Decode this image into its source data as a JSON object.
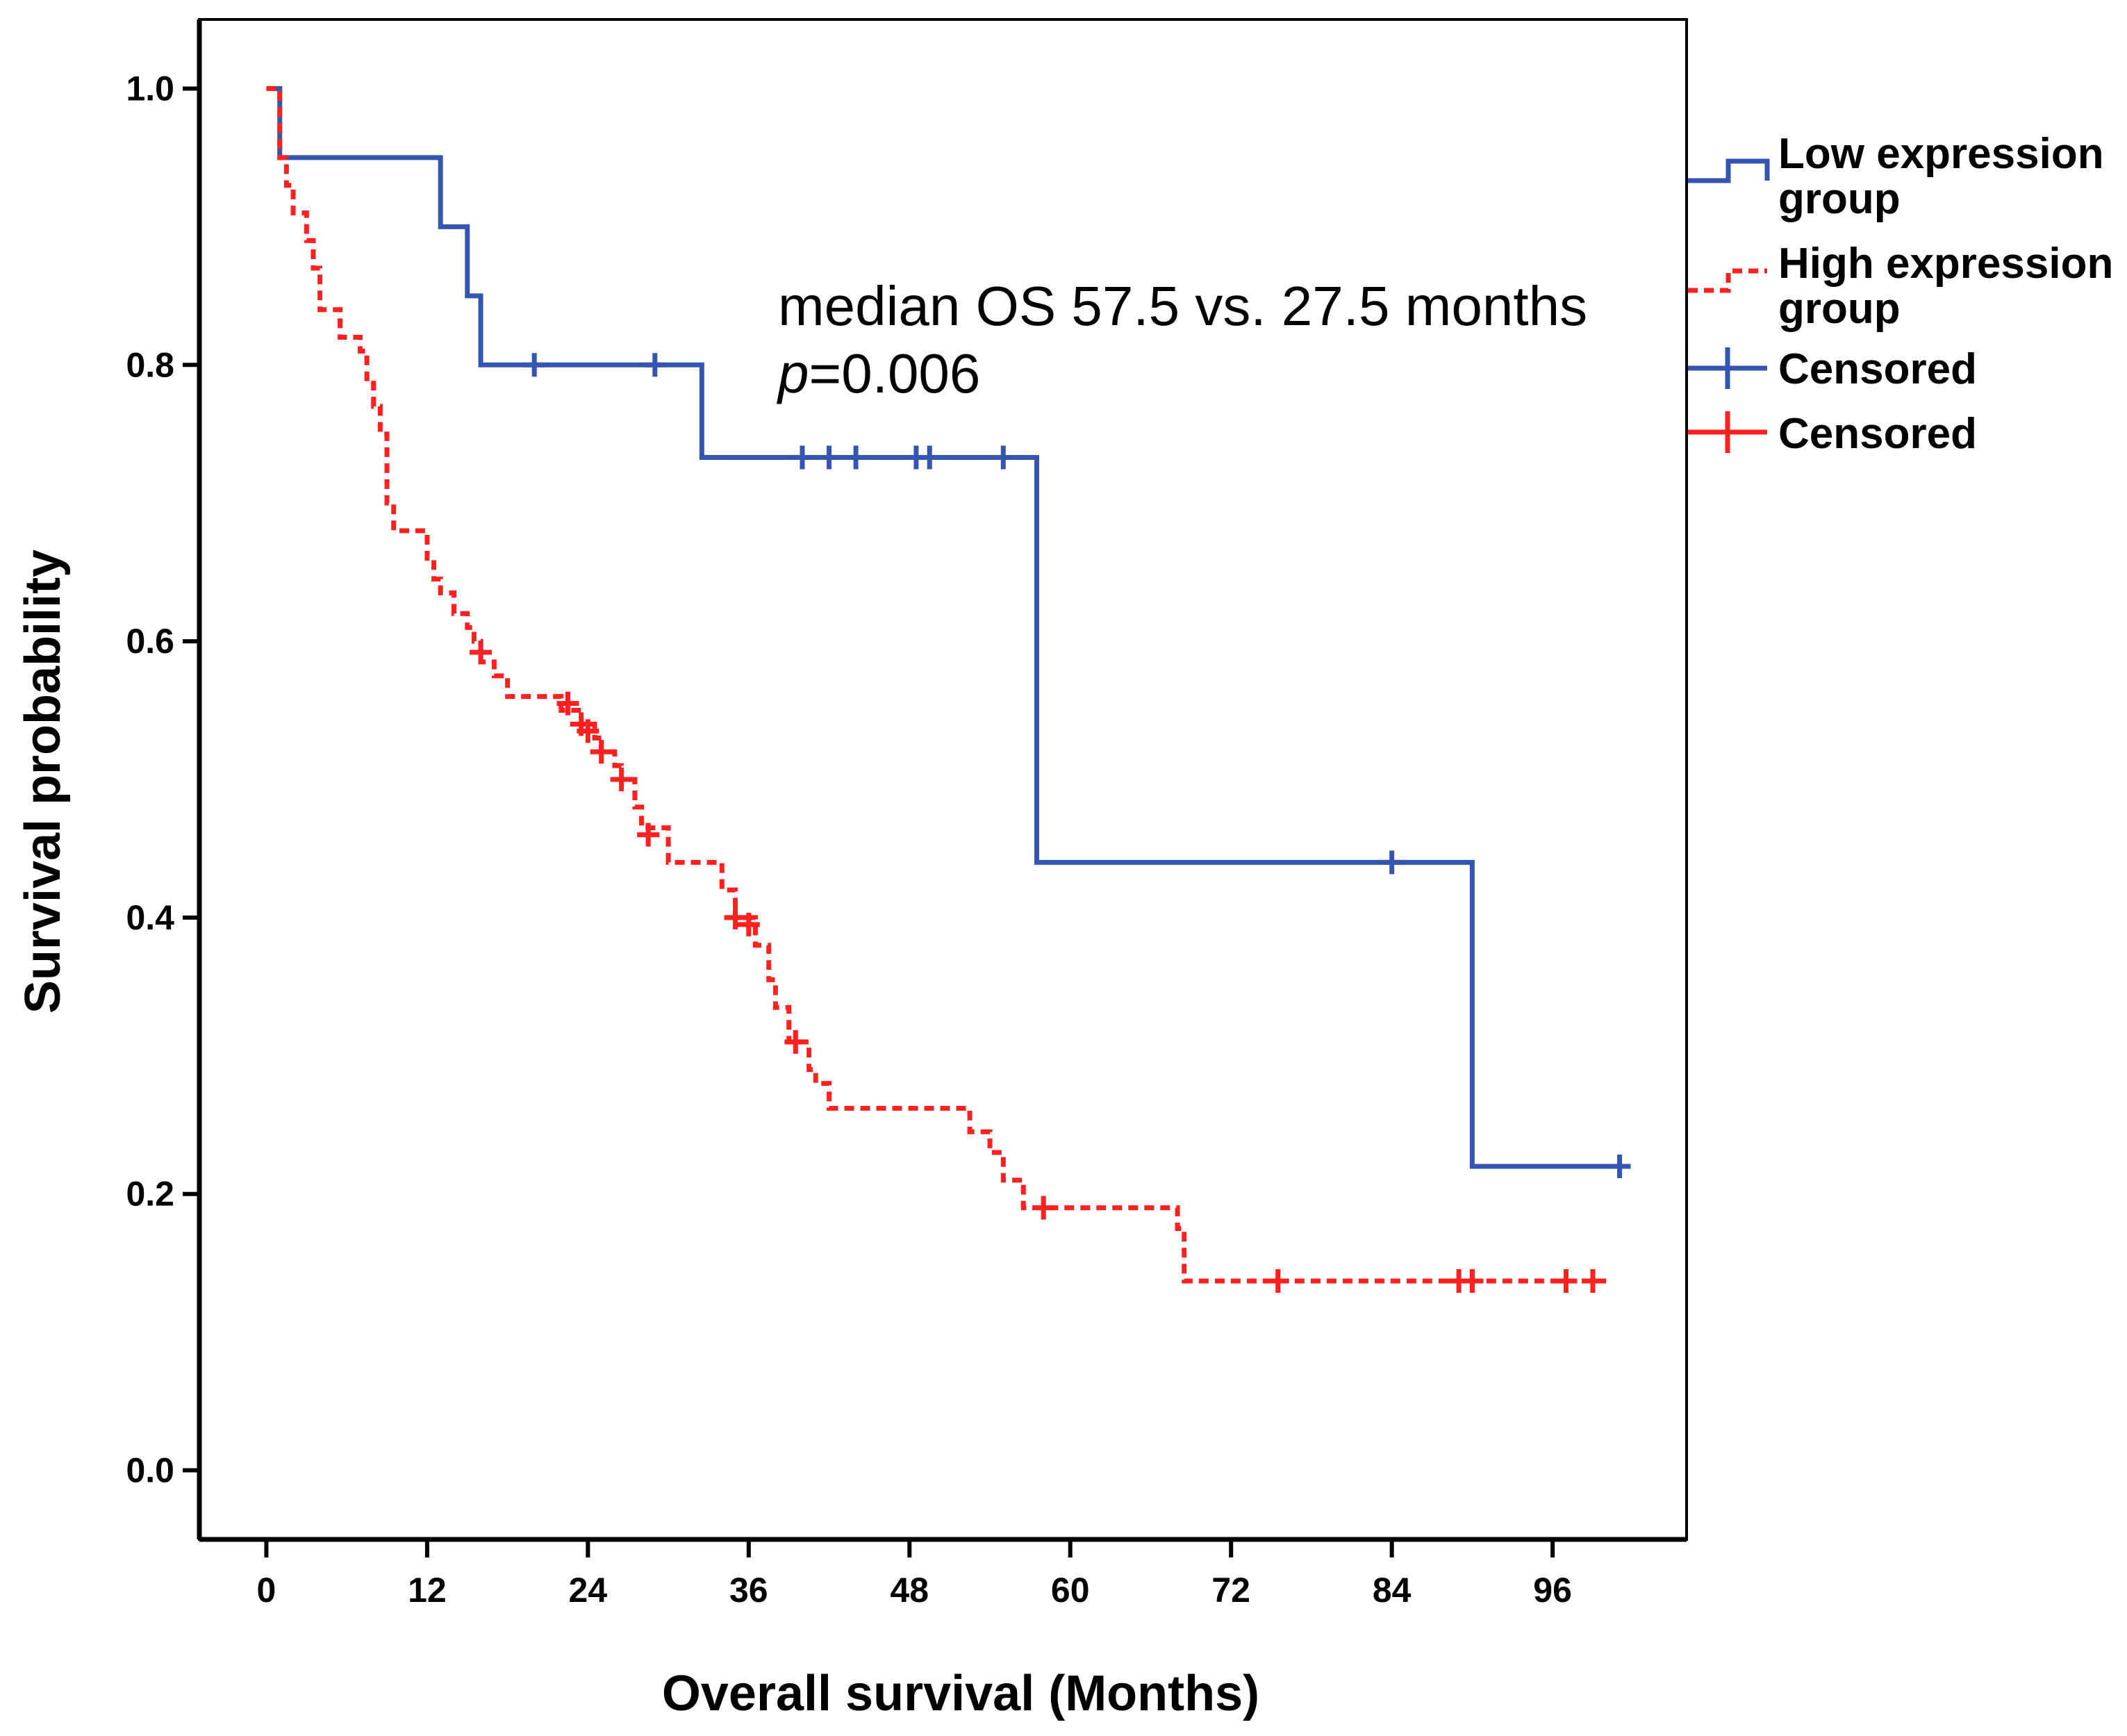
{
  "chart_data": {
    "type": "line",
    "title": "",
    "xlabel": "Overall survival (Months)",
    "ylabel": "Survival probability",
    "xlim": [
      -5,
      106
    ],
    "ylim": [
      -0.05,
      1.05
    ],
    "x_ticks": [
      "0",
      "12",
      "24",
      "36",
      "48",
      "60",
      "72",
      "84",
      "96"
    ],
    "x_tick_values": [
      0,
      12,
      24,
      36,
      48,
      60,
      72,
      84,
      96
    ],
    "y_ticks": [
      "0.0",
      "0.2",
      "0.4",
      "0.6",
      "0.8",
      "1.0"
    ],
    "y_tick_values": [
      0.0,
      0.2,
      0.4,
      0.6,
      0.8,
      1.0
    ],
    "grid": false,
    "legend_position": "right",
    "annotation": {
      "line1": "median OS 57.5 vs. 27.5 months",
      "p_symbol": "p",
      "p_value": "=0.006"
    },
    "legend": {
      "low_line1": "Low expression",
      "low_line2": "group",
      "high_line1": "High expression",
      "high_line2": "group",
      "censored_low": "Censored",
      "censored_high": "Censored"
    },
    "series": [
      {
        "name": "Low expression group",
        "color": "#3556b0",
        "dash": "solid",
        "steps": [
          [
            0,
            1.0
          ],
          [
            1,
            0.95
          ],
          [
            13,
            0.9
          ],
          [
            15,
            0.85
          ],
          [
            16,
            0.8
          ],
          [
            32.5,
            0.733
          ],
          [
            57.5,
            0.44
          ],
          [
            90,
            0.22
          ],
          [
            101,
            0.22
          ]
        ],
        "censored": [
          [
            20,
            0.8
          ],
          [
            29,
            0.8
          ],
          [
            40,
            0.733
          ],
          [
            42,
            0.733
          ],
          [
            44,
            0.733
          ],
          [
            48.5,
            0.733
          ],
          [
            49.5,
            0.733
          ],
          [
            55,
            0.733
          ],
          [
            84,
            0.44
          ],
          [
            101,
            0.22
          ]
        ]
      },
      {
        "name": "High expression group",
        "color": "#ff2020",
        "dash": "dashed",
        "steps": [
          [
            0,
            1.0
          ],
          [
            1,
            0.95
          ],
          [
            1.5,
            0.93
          ],
          [
            2,
            0.91
          ],
          [
            3,
            0.89
          ],
          [
            3.5,
            0.87
          ],
          [
            4,
            0.84
          ],
          [
            5.5,
            0.82
          ],
          [
            7,
            0.81
          ],
          [
            7.5,
            0.79
          ],
          [
            8,
            0.77
          ],
          [
            8.5,
            0.75
          ],
          [
            9,
            0.7
          ],
          [
            9.5,
            0.68
          ],
          [
            12,
            0.66
          ],
          [
            12.5,
            0.645
          ],
          [
            13,
            0.635
          ],
          [
            14,
            0.62
          ],
          [
            15,
            0.61
          ],
          [
            15.5,
            0.6
          ],
          [
            16,
            0.585
          ],
          [
            17,
            0.575
          ],
          [
            18,
            0.56
          ],
          [
            22,
            0.55
          ],
          [
            23.5,
            0.54
          ],
          [
            24.5,
            0.53
          ],
          [
            25,
            0.52
          ],
          [
            26,
            0.51
          ],
          [
            26.5,
            0.5
          ],
          [
            27.5,
            0.48
          ],
          [
            28,
            0.465
          ],
          [
            30,
            0.44
          ],
          [
            34,
            0.42
          ],
          [
            35,
            0.4
          ],
          [
            36.5,
            0.38
          ],
          [
            37.5,
            0.355
          ],
          [
            38,
            0.335
          ],
          [
            39,
            0.31
          ],
          [
            40.5,
            0.29
          ],
          [
            41,
            0.28
          ],
          [
            42,
            0.262
          ],
          [
            52.5,
            0.245
          ],
          [
            54,
            0.23
          ],
          [
            55,
            0.21
          ],
          [
            56.5,
            0.19
          ],
          [
            68,
            0.175
          ],
          [
            68.5,
            0.137
          ],
          [
            100,
            0.137
          ]
        ],
        "censored": [
          [
            16,
            0.592
          ],
          [
            22.5,
            0.555
          ],
          [
            23.5,
            0.54
          ],
          [
            24,
            0.535
          ],
          [
            25,
            0.52
          ],
          [
            26.5,
            0.5
          ],
          [
            28.5,
            0.46
          ],
          [
            35,
            0.4
          ],
          [
            36,
            0.395
          ],
          [
            39.5,
            0.31
          ],
          [
            58,
            0.19
          ],
          [
            75.5,
            0.137
          ],
          [
            89,
            0.137
          ],
          [
            90,
            0.137
          ],
          [
            97,
            0.137
          ],
          [
            99,
            0.137
          ]
        ]
      }
    ]
  }
}
